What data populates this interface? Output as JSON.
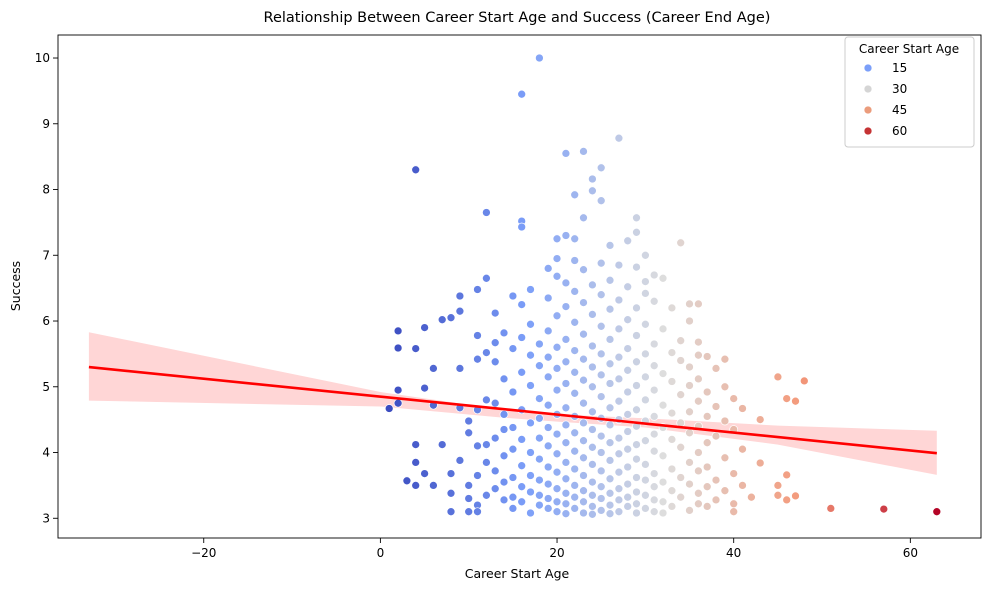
{
  "chart_data": {
    "type": "scatter",
    "title": "Relationship Between Career Start Age and Success (Career End Age)",
    "xlabel": "Career Start Age",
    "ylabel": "Success",
    "xlim": [
      -36.5,
      68
    ],
    "ylim": [
      2.7,
      10.35
    ],
    "xticks": [
      -20,
      0,
      20,
      40,
      60
    ],
    "xtick_labels": [
      "−20",
      "0",
      "20",
      "40",
      "60"
    ],
    "yticks": [
      3,
      4,
      5,
      6,
      7,
      8,
      9,
      10
    ],
    "ytick_labels": [
      "3",
      "4",
      "5",
      "6",
      "7",
      "8",
      "9",
      "10"
    ],
    "grid": false,
    "legend": {
      "title": "Career Start Age",
      "placement": "top-right",
      "entries": [
        {
          "label": "15",
          "color": "#7b9ff9"
        },
        {
          "label": "30",
          "color": "#d5d5d5"
        },
        {
          "label": "45",
          "color": "#eb9c7c"
        },
        {
          "label": "60",
          "color": "#c53334"
        }
      ]
    },
    "hue_range": [
      1,
      63
    ],
    "regression": {
      "color": "#ff0000",
      "ci_color": "#ffd6d6",
      "line": [
        [
          -33,
          5.3
        ],
        [
          63,
          3.99
        ]
      ],
      "ci_upper": [
        [
          -33,
          5.83
        ],
        [
          0,
          4.92
        ],
        [
          14,
          4.65
        ],
        [
          20,
          4.58
        ],
        [
          30,
          4.52
        ],
        [
          45,
          4.41
        ],
        [
          63,
          4.33
        ]
      ],
      "ci_lower": [
        [
          -33,
          4.79
        ],
        [
          0,
          4.7
        ],
        [
          14,
          4.53
        ],
        [
          20,
          4.47
        ],
        [
          30,
          4.38
        ],
        [
          45,
          4.12
        ],
        [
          63,
          3.66
        ]
      ]
    },
    "points": [
      [
        18,
        10.0
      ],
      [
        16,
        9.45
      ],
      [
        27,
        8.78
      ],
      [
        23,
        8.58
      ],
      [
        21,
        8.55
      ],
      [
        25,
        8.33
      ],
      [
        4,
        8.3
      ],
      [
        24,
        8.16
      ],
      [
        24,
        7.98
      ],
      [
        22,
        7.92
      ],
      [
        25,
        7.83
      ],
      [
        12,
        7.65
      ],
      [
        29,
        7.57
      ],
      [
        23,
        7.57
      ],
      [
        16,
        7.52
      ],
      [
        16,
        7.43
      ],
      [
        29,
        7.35
      ],
      [
        21,
        7.3
      ],
      [
        22,
        7.25
      ],
      [
        20,
        7.25
      ],
      [
        28,
        7.22
      ],
      [
        34,
        7.19
      ],
      [
        26,
        7.15
      ],
      [
        30,
        7.0
      ],
      [
        20,
        6.95
      ],
      [
        22,
        6.92
      ],
      [
        25,
        6.88
      ],
      [
        27,
        6.85
      ],
      [
        29,
        6.82
      ],
      [
        19,
        6.8
      ],
      [
        23,
        6.78
      ],
      [
        31,
        6.7
      ],
      [
        20,
        6.68
      ],
      [
        12,
        6.65
      ],
      [
        26,
        6.62
      ],
      [
        30,
        6.6
      ],
      [
        32,
        6.65
      ],
      [
        21,
        6.58
      ],
      [
        24,
        6.55
      ],
      [
        28,
        6.52
      ],
      [
        17,
        6.48
      ],
      [
        11,
        6.48
      ],
      [
        22,
        6.45
      ],
      [
        30,
        6.42
      ],
      [
        25,
        6.4
      ],
      [
        9,
        6.38
      ],
      [
        15,
        6.38
      ],
      [
        19,
        6.35
      ],
      [
        27,
        6.32
      ],
      [
        31,
        6.3
      ],
      [
        23,
        6.28
      ],
      [
        16,
        6.25
      ],
      [
        35,
        6.26
      ],
      [
        36,
        6.26
      ],
      [
        21,
        6.22
      ],
      [
        29,
        6.2
      ],
      [
        26,
        6.18
      ],
      [
        33,
        6.2
      ],
      [
        9,
        6.15
      ],
      [
        13,
        6.12
      ],
      [
        24,
        6.1
      ],
      [
        20,
        6.08
      ],
      [
        8,
        6.05
      ],
      [
        7,
        6.02
      ],
      [
        28,
        6.02
      ],
      [
        35,
        6.0
      ],
      [
        22,
        5.98
      ],
      [
        17,
        5.95
      ],
      [
        30,
        5.95
      ],
      [
        25,
        5.92
      ],
      [
        5,
        5.9
      ],
      [
        11,
        5.78
      ],
      [
        27,
        5.88
      ],
      [
        32,
        5.88
      ],
      [
        2,
        5.85
      ],
      [
        19,
        5.85
      ],
      [
        14,
        5.82
      ],
      [
        23,
        5.8
      ],
      [
        29,
        5.78
      ],
      [
        16,
        5.75
      ],
      [
        21,
        5.72
      ],
      [
        34,
        5.7
      ],
      [
        26,
        5.72
      ],
      [
        36,
        5.68
      ],
      [
        13,
        5.67
      ],
      [
        31,
        5.65
      ],
      [
        18,
        5.65
      ],
      [
        24,
        5.62
      ],
      [
        20,
        5.6
      ],
      [
        2,
        5.59
      ],
      [
        4,
        5.58
      ],
      [
        28,
        5.58
      ],
      [
        15,
        5.58
      ],
      [
        22,
        5.55
      ],
      [
        12,
        5.52
      ],
      [
        33,
        5.52
      ],
      [
        25,
        5.5
      ],
      [
        30,
        5.5
      ],
      [
        17,
        5.48
      ],
      [
        36,
        5.48
      ],
      [
        19,
        5.45
      ],
      [
        27,
        5.45
      ],
      [
        37,
        5.46
      ],
      [
        11,
        5.42
      ],
      [
        23,
        5.42
      ],
      [
        34,
        5.4
      ],
      [
        39,
        5.42
      ],
      [
        21,
        5.38
      ],
      [
        13,
        5.38
      ],
      [
        29,
        5.38
      ],
      [
        26,
        5.35
      ],
      [
        31,
        5.32
      ],
      [
        18,
        5.32
      ],
      [
        24,
        5.3
      ],
      [
        6,
        5.28
      ],
      [
        9,
        5.28
      ],
      [
        35,
        5.3
      ],
      [
        20,
        5.28
      ],
      [
        28,
        5.25
      ],
      [
        38,
        5.28
      ],
      [
        22,
        5.22
      ],
      [
        16,
        5.22
      ],
      [
        32,
        5.2
      ],
      [
        25,
        5.18
      ],
      [
        19,
        5.15
      ],
      [
        45,
        5.15
      ],
      [
        30,
        5.15
      ],
      [
        27,
        5.12
      ],
      [
        14,
        5.12
      ],
      [
        36,
        5.12
      ],
      [
        23,
        5.1
      ],
      [
        48,
        5.09
      ],
      [
        33,
        5.08
      ],
      [
        21,
        5.05
      ],
      [
        26,
        5.05
      ],
      [
        17,
        5.02
      ],
      [
        29,
        5.02
      ],
      [
        35,
        5.02
      ],
      [
        24,
        5.0
      ],
      [
        39,
        5.0
      ],
      [
        5,
        4.98
      ],
      [
        2,
        4.95
      ],
      [
        20,
        4.95
      ],
      [
        31,
        4.95
      ],
      [
        28,
        4.92
      ],
      [
        37,
        4.92
      ],
      [
        15,
        4.92
      ],
      [
        22,
        4.9
      ],
      [
        34,
        4.88
      ],
      [
        25,
        4.85
      ],
      [
        40,
        4.82
      ],
      [
        46,
        4.82
      ],
      [
        47,
        4.78
      ],
      [
        18,
        4.82
      ],
      [
        30,
        4.8
      ],
      [
        27,
        4.78
      ],
      [
        12,
        4.8
      ],
      [
        36,
        4.78
      ],
      [
        2,
        4.75
      ],
      [
        13,
        4.75
      ],
      [
        6,
        4.72
      ],
      [
        23,
        4.75
      ],
      [
        19,
        4.72
      ],
      [
        32,
        4.72
      ],
      [
        38,
        4.7
      ],
      [
        9,
        4.68
      ],
      [
        21,
        4.68
      ],
      [
        26,
        4.68
      ],
      [
        29,
        4.65
      ],
      [
        1,
        4.67
      ],
      [
        11,
        4.65
      ],
      [
        16,
        4.65
      ],
      [
        24,
        4.62
      ],
      [
        35,
        4.62
      ],
      [
        41,
        4.67
      ],
      [
        33,
        4.6
      ],
      [
        20,
        4.58
      ],
      [
        28,
        4.58
      ],
      [
        14,
        4.58
      ],
      [
        22,
        4.55
      ],
      [
        31,
        4.55
      ],
      [
        37,
        4.55
      ],
      [
        18,
        4.52
      ],
      [
        25,
        4.52
      ],
      [
        43,
        4.5
      ],
      [
        27,
        4.5
      ],
      [
        30,
        4.48
      ],
      [
        10,
        4.48
      ],
      [
        39,
        4.48
      ],
      [
        23,
        4.45
      ],
      [
        17,
        4.45
      ],
      [
        34,
        4.45
      ],
      [
        21,
        4.42
      ],
      [
        26,
        4.42
      ],
      [
        29,
        4.4
      ],
      [
        36,
        4.4
      ],
      [
        19,
        4.38
      ],
      [
        32,
        4.38
      ],
      [
        15,
        4.38
      ],
      [
        24,
        4.35
      ],
      [
        14,
        4.35
      ],
      [
        40,
        4.35
      ],
      [
        28,
        4.32
      ],
      [
        22,
        4.3
      ],
      [
        10,
        4.3
      ],
      [
        35,
        4.3
      ],
      [
        31,
        4.28
      ],
      [
        20,
        4.28
      ],
      [
        25,
        4.25
      ],
      [
        38,
        4.25
      ],
      [
        13,
        4.22
      ],
      [
        18,
        4.22
      ],
      [
        27,
        4.22
      ],
      [
        33,
        4.2
      ],
      [
        16,
        4.2
      ],
      [
        23,
        4.18
      ],
      [
        30,
        4.18
      ],
      [
        21,
        4.15
      ],
      [
        37,
        4.15
      ],
      [
        26,
        4.15
      ],
      [
        12,
        4.12
      ],
      [
        4,
        4.12
      ],
      [
        7,
        4.12
      ],
      [
        11,
        4.1
      ],
      [
        29,
        4.12
      ],
      [
        19,
        4.1
      ],
      [
        24,
        4.08
      ],
      [
        34,
        4.08
      ],
      [
        28,
        4.05
      ],
      [
        15,
        4.05
      ],
      [
        22,
        4.02
      ],
      [
        41,
        4.05
      ],
      [
        31,
        4.02
      ],
      [
        17,
        4.0
      ],
      [
        25,
        4.0
      ],
      [
        36,
        4.0
      ],
      [
        20,
        3.98
      ],
      [
        27,
        3.98
      ],
      [
        14,
        3.95
      ],
      [
        32,
        3.95
      ],
      [
        23,
        3.92
      ],
      [
        39,
        3.92
      ],
      [
        18,
        3.9
      ],
      [
        29,
        3.9
      ],
      [
        9,
        3.88
      ],
      [
        26,
        3.88
      ],
      [
        12,
        3.85
      ],
      [
        4,
        3.85
      ],
      [
        21,
        3.85
      ],
      [
        35,
        3.85
      ],
      [
        43,
        3.84
      ],
      [
        24,
        3.82
      ],
      [
        30,
        3.82
      ],
      [
        16,
        3.8
      ],
      [
        19,
        3.78
      ],
      [
        28,
        3.78
      ],
      [
        37,
        3.78
      ],
      [
        22,
        3.75
      ],
      [
        33,
        3.75
      ],
      [
        13,
        3.72
      ],
      [
        25,
        3.72
      ],
      [
        36,
        3.72
      ],
      [
        20,
        3.7
      ],
      [
        27,
        3.7
      ],
      [
        8,
        3.68
      ],
      [
        31,
        3.68
      ],
      [
        5,
        3.68
      ],
      [
        40,
        3.68
      ],
      [
        11,
        3.65
      ],
      [
        17,
        3.65
      ],
      [
        23,
        3.65
      ],
      [
        46,
        3.66
      ],
      [
        29,
        3.62
      ],
      [
        15,
        3.62
      ],
      [
        34,
        3.62
      ],
      [
        21,
        3.6
      ],
      [
        26,
        3.6
      ],
      [
        18,
        3.58
      ],
      [
        38,
        3.58
      ],
      [
        30,
        3.58
      ],
      [
        3,
        3.57
      ],
      [
        24,
        3.55
      ],
      [
        32,
        3.55
      ],
      [
        14,
        3.55
      ],
      [
        19,
        3.52
      ],
      [
        28,
        3.52
      ],
      [
        35,
        3.52
      ],
      [
        22,
        3.5
      ],
      [
        4,
        3.5
      ],
      [
        6,
        3.5
      ],
      [
        10,
        3.5
      ],
      [
        25,
        3.48
      ],
      [
        41,
        3.5
      ],
      [
        45,
        3.5
      ],
      [
        16,
        3.48
      ],
      [
        31,
        3.48
      ],
      [
        37,
        3.48
      ],
      [
        20,
        3.45
      ],
      [
        27,
        3.45
      ],
      [
        13,
        3.45
      ],
      [
        33,
        3.42
      ],
      [
        23,
        3.42
      ],
      [
        39,
        3.42
      ],
      [
        8,
        3.38
      ],
      [
        17,
        3.4
      ],
      [
        29,
        3.4
      ],
      [
        21,
        3.38
      ],
      [
        26,
        3.38
      ],
      [
        36,
        3.38
      ],
      [
        12,
        3.35
      ],
      [
        18,
        3.35
      ],
      [
        24,
        3.35
      ],
      [
        30,
        3.35
      ],
      [
        45,
        3.35
      ],
      [
        47,
        3.34
      ],
      [
        42,
        3.32
      ],
      [
        15,
        3.32
      ],
      [
        22,
        3.32
      ],
      [
        28,
        3.32
      ],
      [
        34,
        3.32
      ],
      [
        10,
        3.3
      ],
      [
        19,
        3.3
      ],
      [
        25,
        3.3
      ],
      [
        46,
        3.28
      ],
      [
        31,
        3.28
      ],
      [
        38,
        3.28
      ],
      [
        14,
        3.28
      ],
      [
        27,
        3.28
      ],
      [
        20,
        3.25
      ],
      [
        23,
        3.25
      ],
      [
        32,
        3.25
      ],
      [
        16,
        3.25
      ],
      [
        29,
        3.22
      ],
      [
        36,
        3.22
      ],
      [
        21,
        3.22
      ],
      [
        26,
        3.2
      ],
      [
        40,
        3.22
      ],
      [
        11,
        3.2
      ],
      [
        18,
        3.2
      ],
      [
        24,
        3.18
      ],
      [
        33,
        3.18
      ],
      [
        28,
        3.18
      ],
      [
        37,
        3.18
      ],
      [
        22,
        3.15
      ],
      [
        51,
        3.15
      ],
      [
        57,
        3.14
      ],
      [
        30,
        3.15
      ],
      [
        15,
        3.15
      ],
      [
        19,
        3.15
      ],
      [
        25,
        3.12
      ],
      [
        35,
        3.12
      ],
      [
        63,
        3.1
      ],
      [
        8,
        3.1
      ],
      [
        11,
        3.1
      ],
      [
        10,
        3.1
      ],
      [
        20,
        3.1
      ],
      [
        27,
        3.1
      ],
      [
        31,
        3.1
      ],
      [
        23,
        3.08
      ],
      [
        40,
        3.1
      ],
      [
        17,
        3.08
      ],
      [
        29,
        3.08
      ],
      [
        21,
        3.07
      ],
      [
        26,
        3.07
      ],
      [
        24,
        3.06
      ],
      [
        32,
        3.08
      ]
    ]
  }
}
